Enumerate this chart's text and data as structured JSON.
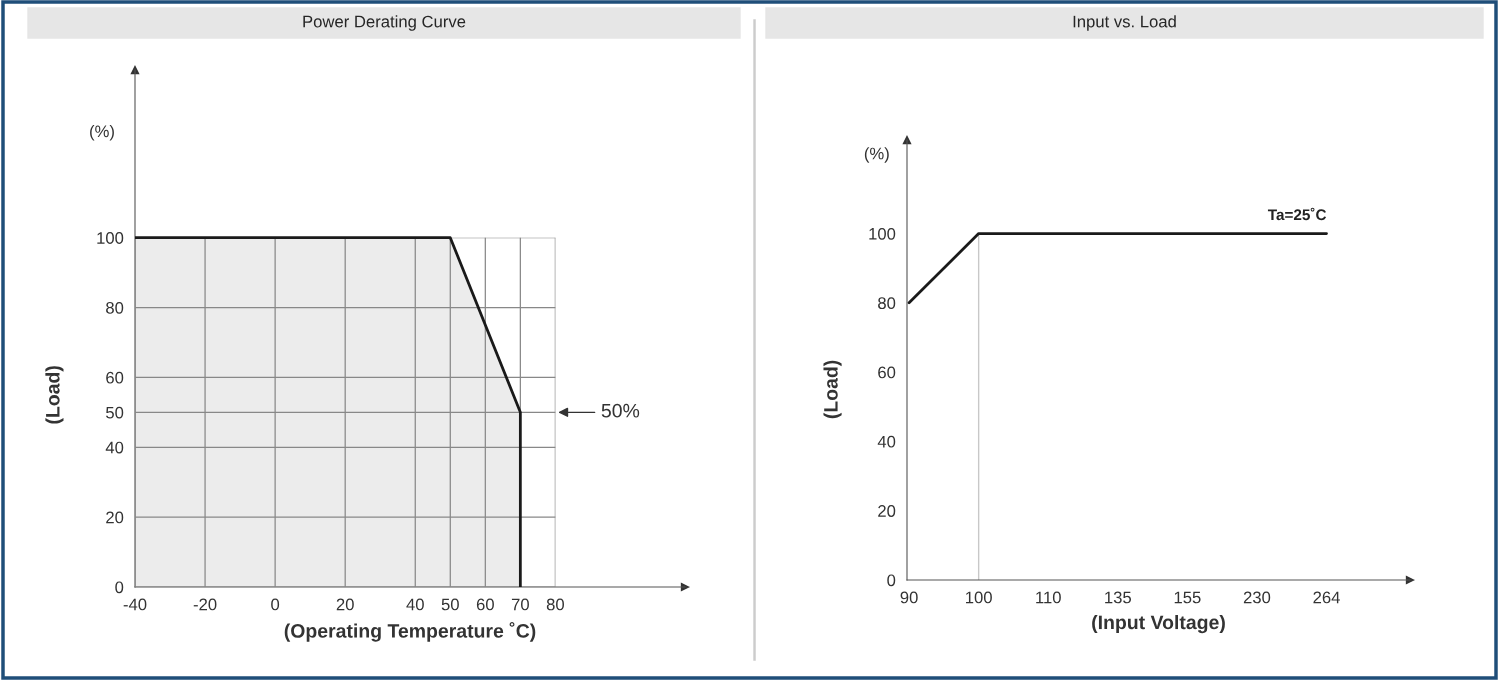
{
  "chart_data": [
    {
      "type": "area",
      "title": "Power Derating Curve",
      "xlabel": "(Operating Temperature ˚C)",
      "ylabel": "(Load)",
      "x": [
        -40,
        50,
        70,
        70
      ],
      "values": [
        100,
        100,
        50,
        0
      ],
      "color": "#1a1a1a",
      "xlim": [
        -40,
        117
      ],
      "ylim": [
        0,
        148
      ],
      "xticks": [
        -40,
        -20,
        0,
        20,
        40,
        50,
        60,
        70,
        80
      ],
      "yticks": [
        0,
        20,
        40,
        50,
        60,
        80,
        100
      ],
      "grid": true,
      "annotations": [
        "(%)",
        "50%"
      ]
    },
    {
      "type": "line",
      "title": "Input vs. Load",
      "xlabel": "(Input Voltage)",
      "ylabel": "(Load)",
      "categories": [
        "90",
        "100",
        "110",
        "135",
        "155",
        "230",
        "264"
      ],
      "values": [
        80,
        100,
        100,
        100,
        100,
        100,
        100
      ],
      "color": "#1a1a1a",
      "ylim": [
        0,
        127
      ],
      "yticks": [
        0,
        20,
        40,
        60,
        80,
        100
      ],
      "ref_lines": [
        {
          "axis": "x",
          "value": "100",
          "color": "#c8c8c8"
        }
      ],
      "annotations": [
        "(%)",
        "Ta=25˚C"
      ]
    }
  ]
}
